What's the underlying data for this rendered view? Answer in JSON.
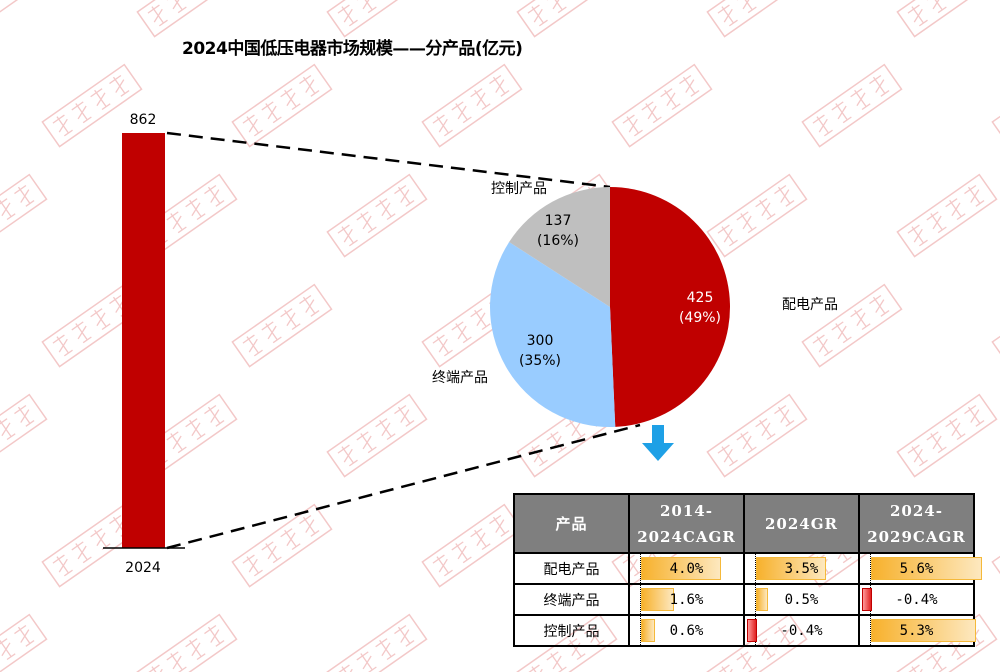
{
  "chart_data": [
    {
      "type": "bar",
      "title": "2024中国低压电器市场规模——分产品(亿元)",
      "categories": [
        "2024"
      ],
      "values": [
        862
      ],
      "color": "#c00000"
    },
    {
      "type": "pie",
      "slices": [
        {
          "label": "配电产品",
          "value": 425,
          "pct": "(49%)",
          "color": "#c00000"
        },
        {
          "label": "终端产品",
          "value": 300,
          "pct": "(35%)",
          "color": "#99ccff"
        },
        {
          "label": "控制产品",
          "value": 137,
          "pct": "(16%)",
          "color": "#bfbfbf"
        }
      ]
    },
    {
      "type": "table",
      "headers": [
        "产品",
        "2014-\n2024CAGR",
        "2024GR",
        "2024-\n2029CAGR"
      ],
      "rows": [
        {
          "name": "配电产品",
          "values": [
            4.0,
            3.5,
            5.6
          ],
          "labels": [
            "4.0%",
            "3.5%",
            "5.6%"
          ]
        },
        {
          "name": "终端产品",
          "values": [
            1.6,
            0.5,
            -0.4
          ],
          "labels": [
            "1.6%",
            "0.5%",
            "-0.4%"
          ]
        },
        {
          "name": "控制产品",
          "values": [
            0.6,
            -0.4,
            5.3
          ],
          "labels": [
            "0.6%",
            "-0.4%",
            "5.3%"
          ]
        }
      ]
    }
  ],
  "watermark": "格物致胜",
  "arrow_color": "#1ea0e6"
}
